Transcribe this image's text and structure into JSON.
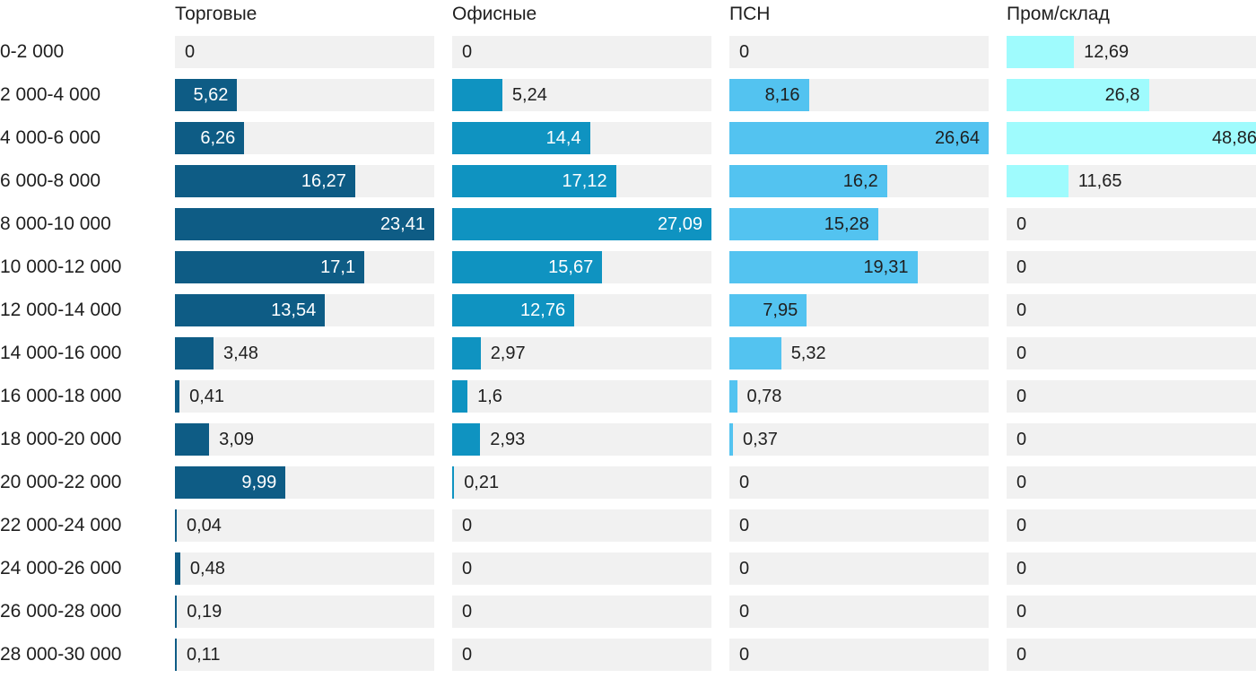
{
  "chart_data": {
    "type": "bar",
    "orientation": "horizontal",
    "layout_hint": "four small-multiple columns, each bar column normalized to its own max value, value labels with comma decimal separator, no axes or gridlines",
    "background_color": "#ffffff",
    "track_color": "#f1f1f1",
    "text_color": "#1f1f1f",
    "categories": [
      "0-2 000",
      "2 000-4 000",
      "4 000-6 000",
      "6 000-8 000",
      "8 000-10 000",
      "10 000-12 000",
      "12 000-14 000",
      "14 000-16 000",
      "16 000-18 000",
      "18 000-20 000",
      "20 000-22 000",
      "22 000-24 000",
      "24 000-26 000",
      "26 000-28 000",
      "28 000-30 000"
    ],
    "series": [
      {
        "name": "Торговые",
        "color": "#0e5c85",
        "inside_label_color": "#ffffff",
        "values": [
          0,
          5.62,
          6.26,
          16.27,
          23.41,
          17.1,
          13.54,
          3.48,
          0.41,
          3.09,
          9.99,
          0.04,
          0.48,
          0.19,
          0.11
        ],
        "labels": [
          "0",
          "5,62",
          "6,26",
          "16,27",
          "23,41",
          "17,1",
          "13,54",
          "3,48",
          "0,41",
          "3,09",
          "9,99",
          "0,04",
          "0,48",
          "0,19",
          "0,11"
        ]
      },
      {
        "name": "Офисные",
        "color": "#0f93c1",
        "inside_label_color": "#ffffff",
        "values": [
          0,
          5.24,
          14.4,
          17.12,
          27.09,
          15.67,
          12.76,
          2.97,
          1.6,
          2.93,
          0.21,
          0,
          0,
          0,
          0
        ],
        "labels": [
          "0",
          "5,24",
          "14,4",
          "17,12",
          "27,09",
          "15,67",
          "12,76",
          "2,97",
          "1,6",
          "2,93",
          "0,21",
          "0",
          "0",
          "0",
          "0"
        ]
      },
      {
        "name": "ПСН",
        "color": "#53c3f0",
        "inside_label_color": "#1f1f1f",
        "values": [
          0,
          8.16,
          26.64,
          16.2,
          15.28,
          19.31,
          7.95,
          5.32,
          0.78,
          0.37,
          0,
          0,
          0,
          0,
          0
        ],
        "labels": [
          "0",
          "8,16",
          "26,64",
          "16,2",
          "15,28",
          "19,31",
          "7,95",
          "5,32",
          "0,78",
          "0,37",
          "0",
          "0",
          "0",
          "0",
          "0"
        ]
      },
      {
        "name": "Пром/склад",
        "color": "#9ffbfd",
        "inside_label_color": "#1f1f1f",
        "values": [
          12.69,
          26.8,
          48.86,
          11.65,
          0,
          0,
          0,
          0,
          0,
          0,
          0,
          0,
          0,
          0,
          0
        ],
        "labels": [
          "12,69",
          "26,8",
          "48,86",
          "11,65",
          "0",
          "0",
          "0",
          "0",
          "0",
          "0",
          "0",
          "0",
          "0",
          "0",
          "0"
        ]
      }
    ]
  }
}
